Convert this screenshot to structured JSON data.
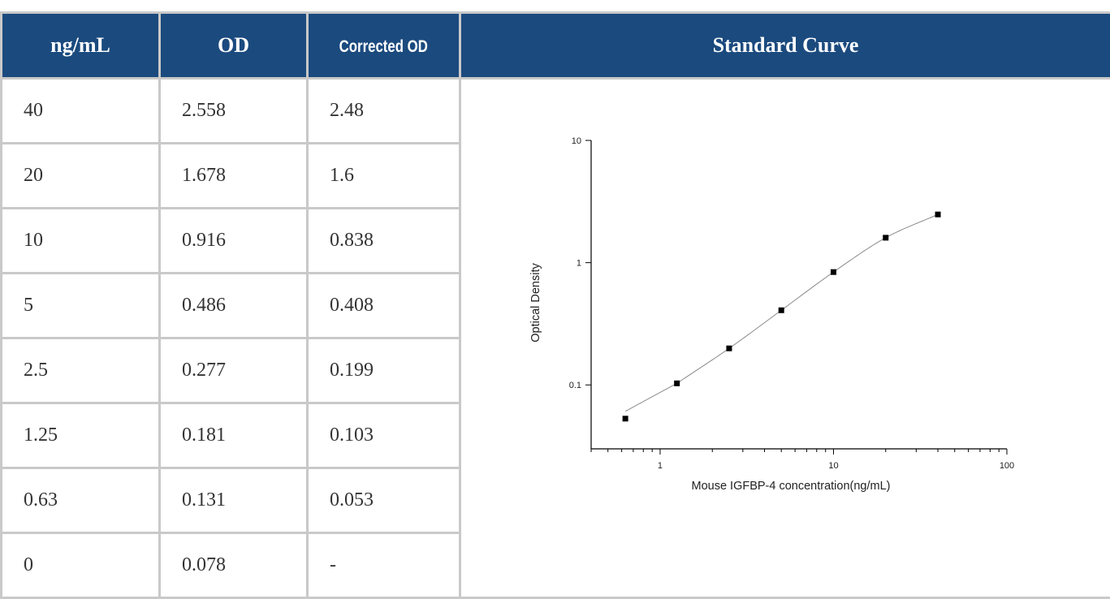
{
  "table": {
    "headers": [
      "ng/mL",
      "OD",
      "Corrected OD",
      "Standard Curve"
    ],
    "rows": [
      [
        "40",
        "2.558",
        "2.48"
      ],
      [
        "20",
        "1.678",
        "1.6"
      ],
      [
        "10",
        "0.916",
        "0.838"
      ],
      [
        "5",
        "0.486",
        "0.408"
      ],
      [
        "2.5",
        "0.277",
        "0.199"
      ],
      [
        "1.25",
        "0.181",
        "0.103"
      ],
      [
        "0.63",
        "0.131",
        "0.053"
      ],
      [
        "0",
        "0.078",
        "-"
      ]
    ]
  },
  "chart_data": {
    "type": "scatter",
    "x_scale": "log",
    "y_scale": "log",
    "xlabel": "Mouse IGFBP-4 concentration(ng/mL)",
    "ylabel": "Optical Density",
    "xlim": [
      0.4,
      100
    ],
    "ylim": [
      0.03,
      10
    ],
    "x_ticks": [
      "1",
      "10",
      "100"
    ],
    "y_ticks": [
      "0.1",
      "1",
      "10"
    ],
    "points": {
      "x": [
        0.63,
        1.25,
        2.5,
        5,
        10,
        20,
        40
      ],
      "y": [
        0.053,
        0.103,
        0.199,
        0.408,
        0.838,
        1.6,
        2.48
      ]
    },
    "fit_curve": true,
    "grid": false,
    "marker_color": "#000000",
    "curve_color": "#8a8a8a"
  },
  "colors": {
    "header_bg": "#1b4a7e",
    "header_text": "#ffffff",
    "border": "#c9c9c9"
  }
}
